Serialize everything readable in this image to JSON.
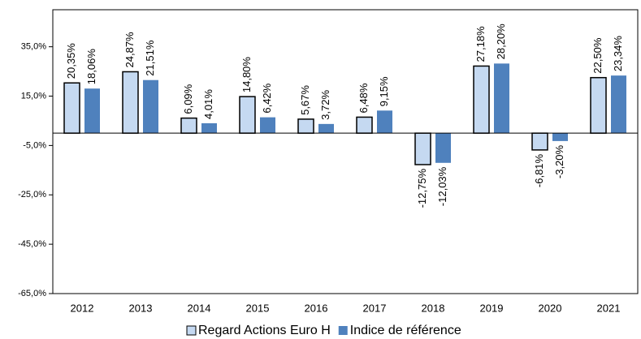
{
  "chart_data": {
    "type": "bar",
    "categories": [
      "2012",
      "2013",
      "2014",
      "2015",
      "2016",
      "2017",
      "2018",
      "2019",
      "2020",
      "2021"
    ],
    "series": [
      {
        "name": "Regard Actions Euro H",
        "color": "#c5d9f1",
        "values": [
          20.35,
          24.87,
          6.09,
          14.8,
          5.67,
          6.48,
          -12.75,
          27.18,
          -6.81,
          22.5
        ],
        "value_labels": [
          "20,35%",
          "24,87%",
          "6,09%",
          "14,80%",
          "5,67%",
          "6,48%",
          "-12,75%",
          "27,18%",
          "-6,81%",
          "22,50%"
        ]
      },
      {
        "name": "Indice de référence",
        "color": "#4f81bd",
        "values": [
          18.06,
          21.51,
          4.01,
          6.42,
          3.72,
          9.15,
          -12.03,
          28.2,
          -3.2,
          23.34
        ],
        "value_labels": [
          "18,06%",
          "21,51%",
          "4,01%",
          "6,42%",
          "3,72%",
          "9,15%",
          "-12,03%",
          "28,20%",
          "-3,20%",
          "23,34%"
        ]
      }
    ],
    "ylim": [
      -65,
      50
    ],
    "yticks": [
      {
        "value": 35,
        "label": "35,0%"
      },
      {
        "value": 15,
        "label": "15,0%"
      },
      {
        "value": -5,
        "label": "-5,0%"
      },
      {
        "value": -25,
        "label": "-25,0%"
      },
      {
        "value": -45,
        "label": "-45,0%"
      },
      {
        "value": -65,
        "label": "-65,0%"
      }
    ],
    "legend": "bottom"
  }
}
